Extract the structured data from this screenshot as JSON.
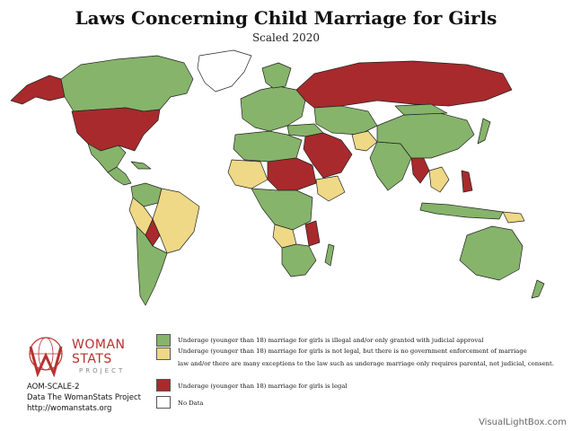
{
  "title": "Laws Concerning Child Marriage for Girls",
  "subtitle": "Scaled 2020",
  "legend": {
    "green": "Underage (younger than 18) marriage for girls is illegal and/or only granted with judicial approval",
    "yellow_line1": "Underage (younger than 18) marriage for girls is not legal, but there is no government enforcement of marriage",
    "yellow_line2": "law and/or there are many exceptions to the law such as underage marriage only requires parental, not judicial, consent.",
    "red": "Underage (younger than 18) marriage for girls is legal",
    "white": "No Data"
  },
  "logo": {
    "line1": "WOMAN",
    "line2": "STATS",
    "line3": "PROJECT"
  },
  "credits": {
    "code": "AOM-SCALE-2",
    "source": "Data The WomanStats Project",
    "url": "http://womanstats.org"
  },
  "watermark": "VisualLightBox.com",
  "colors": {
    "green": "#86b46a",
    "yellow": "#efd886",
    "red": "#a82a2c",
    "white": "#ffffff",
    "border": "#222222"
  }
}
